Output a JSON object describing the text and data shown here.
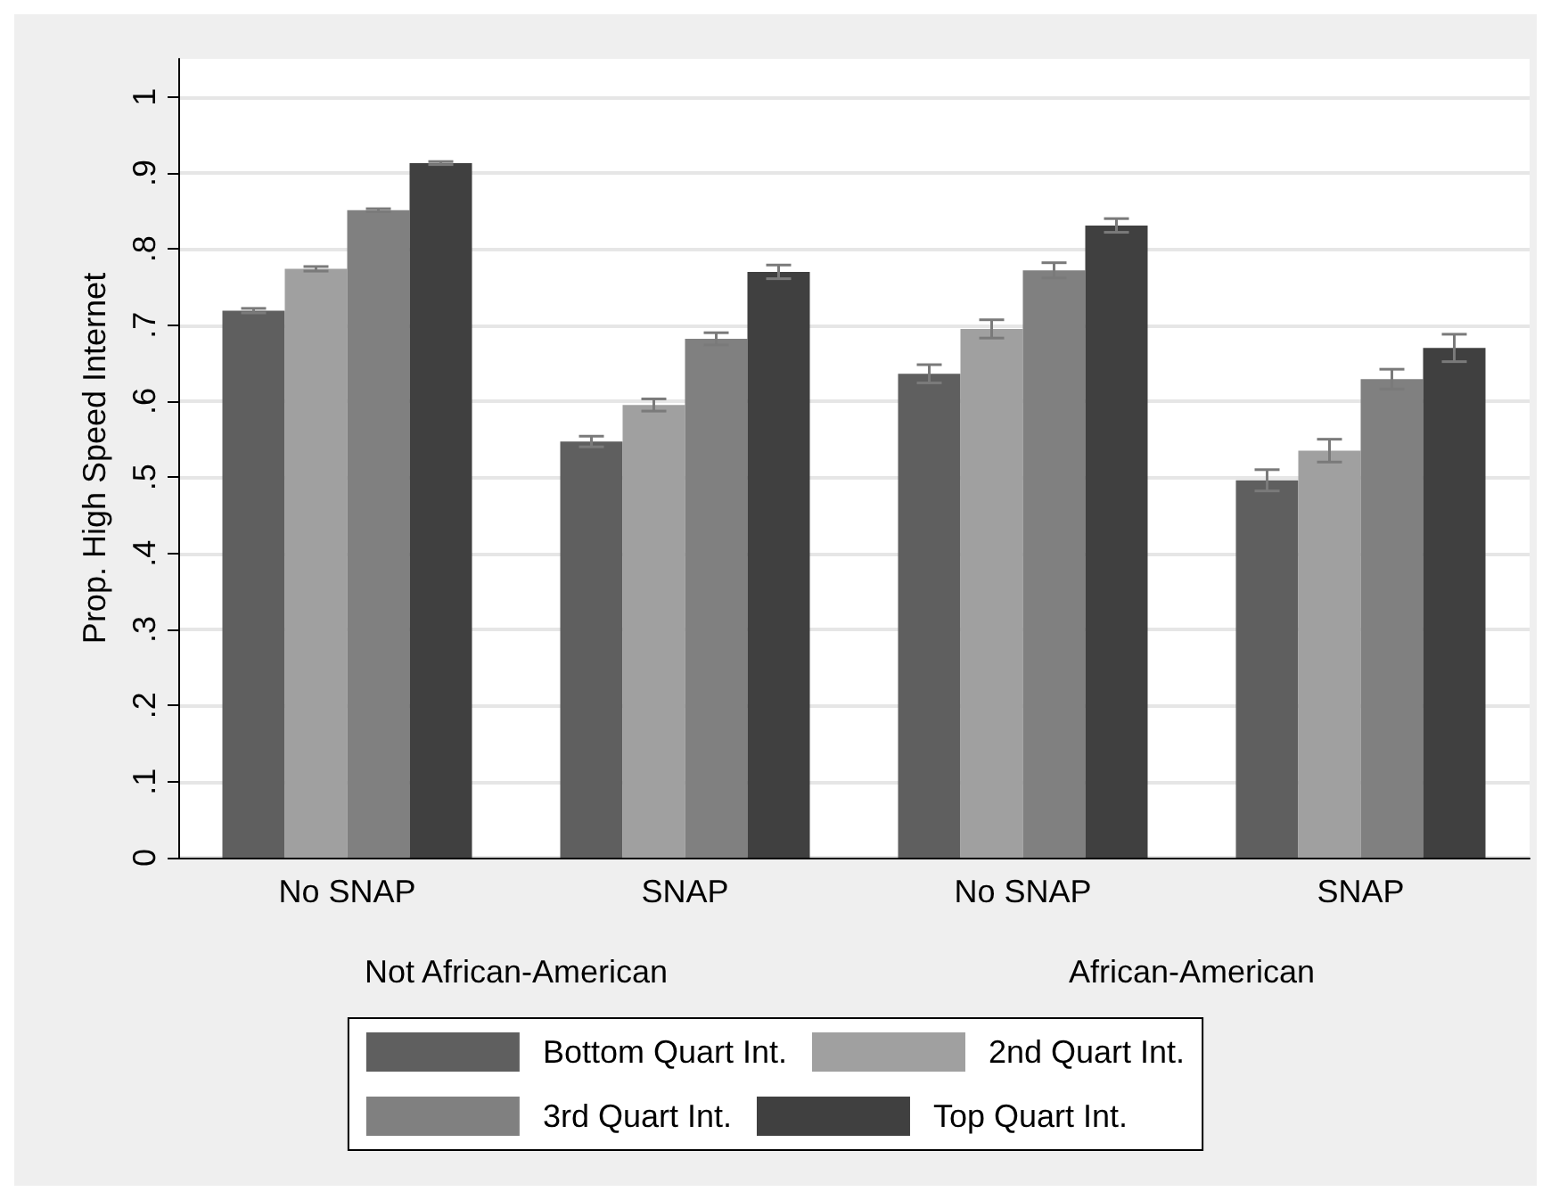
{
  "chart_data": {
    "type": "bar",
    "ylabel": "Prop. High Speed Internet",
    "categories": [
      "No SNAP",
      "SNAP",
      "No SNAP",
      "SNAP"
    ],
    "annotations": [
      "Not African-American",
      "African-American"
    ],
    "series": [
      {
        "name": "Bottom Quart Int.",
        "color": "#5f5f5f",
        "values": [
          0.719,
          0.547,
          0.636,
          0.496
        ],
        "errors": [
          0.003,
          0.007,
          0.012,
          0.014
        ]
      },
      {
        "name": "2nd Quart Int.",
        "color": "#a0a0a0",
        "values": [
          0.774,
          0.595,
          0.695,
          0.535
        ],
        "errors": [
          0.003,
          0.008,
          0.012,
          0.015
        ]
      },
      {
        "name": "3rd Quart Int.",
        "color": "#808080",
        "values": [
          0.851,
          0.682,
          0.772,
          0.629
        ],
        "errors": [
          0.002,
          0.008,
          0.01,
          0.013
        ]
      },
      {
        "name": "Top Quart Int.",
        "color": "#404040",
        "values": [
          0.913,
          0.77,
          0.831,
          0.67
        ],
        "errors": [
          0.002,
          0.009,
          0.009,
          0.018
        ]
      }
    ],
    "ylim": [
      0,
      1.05
    ],
    "yticks": [
      0,
      {
        "value": 0.1,
        "label": ".1"
      },
      {
        "value": 0.2,
        "label": ".2"
      },
      {
        "value": 0.3,
        "label": ".3"
      },
      {
        "value": 0.4,
        "label": ".4"
      },
      {
        "value": 0.5,
        "label": ".5"
      },
      {
        "value": 0.6,
        "label": ".6"
      },
      {
        "value": 0.7,
        "label": ".7"
      },
      {
        "value": 0.8,
        "label": ".8"
      },
      {
        "value": 0.9,
        "label": ".9"
      },
      1
    ],
    "grid": "y",
    "legend": "bottom"
  }
}
